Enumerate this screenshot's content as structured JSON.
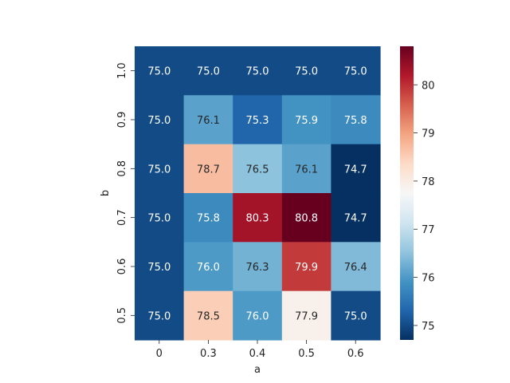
{
  "chart_data": {
    "type": "heatmap",
    "xlabel": "a",
    "ylabel": "b",
    "x_categories": [
      "0",
      "0.3",
      "0.4",
      "0.5",
      "0.6"
    ],
    "y_categories": [
      "1.0",
      "0.9",
      "0.8",
      "0.7",
      "0.6",
      "0.5"
    ],
    "values": [
      [
        75.0,
        75.0,
        75.0,
        75.0,
        75.0
      ],
      [
        75.0,
        76.1,
        75.3,
        75.9,
        75.8
      ],
      [
        75.0,
        78.7,
        76.5,
        76.1,
        74.7
      ],
      [
        75.0,
        75.8,
        80.3,
        80.8,
        74.7
      ],
      [
        75.0,
        76.0,
        76.3,
        79.9,
        76.4
      ],
      [
        75.0,
        78.5,
        76.0,
        77.9,
        75.0
      ]
    ],
    "colormap": "RdBu_r",
    "vmin": 74.7,
    "vmax": 80.8,
    "colorbar_ticks": [
      75,
      76,
      77,
      78,
      79,
      80
    ],
    "annotations": true,
    "value_format": "0.1f"
  }
}
